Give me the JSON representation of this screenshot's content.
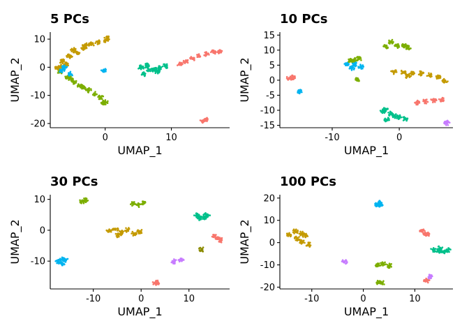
{
  "chart_data": [
    {
      "type": "scatter",
      "title": "5 PCs",
      "xlabel": "UMAP_1",
      "ylabel": "UMAP_2",
      "xlim": [
        -8.3,
        18.8
      ],
      "ylim": [
        -21.5,
        12.5
      ],
      "xticks": [
        0,
        10
      ],
      "yticks": [
        -20,
        -10,
        0,
        10
      ],
      "grid": false,
      "legend": "none",
      "clusters": [
        {
          "color": "#C49A00",
          "points": [
            [
              -7.3,
              -0.1
            ],
            [
              -6.5,
              2.1
            ],
            [
              -5.4,
              4.0
            ],
            [
              -4.3,
              5.3
            ],
            [
              -3.2,
              6.9
            ],
            [
              -2.1,
              8.1
            ],
            [
              -1.1,
              9.0
            ],
            [
              0.1,
              9.7
            ],
            [
              0.3,
              10.3
            ],
            [
              -5.9,
              1.0
            ],
            [
              -6.7,
              0.3
            ],
            [
              -4.8,
              6.1
            ],
            [
              -3.0,
              8.0
            ]
          ]
        },
        {
          "color": "#7CAE00",
          "points": [
            [
              -6.8,
              -1.6
            ],
            [
              -5.7,
              -3.4
            ],
            [
              -4.8,
              -5.1
            ],
            [
              -3.8,
              -6.7
            ],
            [
              -2.5,
              -8.2
            ],
            [
              -1.6,
              -9.5
            ],
            [
              -0.7,
              -10.7
            ],
            [
              0.0,
              -12.4
            ],
            [
              -3.2,
              -7.1
            ],
            [
              -5.2,
              -4.0
            ],
            [
              -0.3,
              -13.0
            ]
          ]
        },
        {
          "color": "#00C08B",
          "points": [
            [
              5.4,
              -0.1
            ],
            [
              5.9,
              -2.3
            ],
            [
              6.7,
              -1.0
            ],
            [
              7.4,
              -0.9
            ],
            [
              8.1,
              -0.3
            ],
            [
              9.1,
              0.4
            ],
            [
              6.2,
              0.6
            ],
            [
              7.9,
              -1.5
            ]
          ]
        },
        {
          "color": "#F8766D",
          "points": [
            [
              11.3,
              1.0
            ],
            [
              12.2,
              2.1
            ],
            [
              13.2,
              3.1
            ],
            [
              14.2,
              3.9
            ],
            [
              15.3,
              4.6
            ],
            [
              16.4,
              5.3
            ],
            [
              17.2,
              5.7
            ],
            [
              14.7,
              -19.1
            ],
            [
              15.1,
              -18.6
            ]
          ]
        },
        {
          "color": "#00B4F0",
          "points": [
            [
              -6.2,
              0.0
            ],
            [
              -6.6,
              -1.1
            ],
            [
              -5.3,
              -2.4
            ],
            [
              -0.2,
              -1.1
            ]
          ]
        }
      ]
    },
    {
      "type": "scatter",
      "title": "10 PCs",
      "xlabel": "UMAP_1",
      "ylabel": "UMAP_2",
      "xlim": [
        -17.8,
        8.0
      ],
      "ylim": [
        -15.8,
        16.0
      ],
      "xticks": [
        -10,
        0
      ],
      "yticks": [
        -15,
        -10,
        -5,
        0,
        5,
        10,
        15
      ],
      "grid": false,
      "legend": "none",
      "clusters": [
        {
          "color": "#7CAE00",
          "points": [
            [
              -2.0,
              11.2
            ],
            [
              -1.2,
              12.8
            ],
            [
              -0.3,
              11.4
            ],
            [
              0.8,
              11.6
            ],
            [
              1.3,
              10.8
            ],
            [
              -6.7,
              6.8
            ],
            [
              -6.0,
              7.2
            ],
            [
              -7.3,
              6.4
            ],
            [
              -6.3,
              0.1
            ]
          ]
        },
        {
          "color": "#00B4F0",
          "points": [
            [
              -7.8,
              5.4
            ],
            [
              -6.6,
              5.3
            ],
            [
              -5.7,
              4.5
            ],
            [
              -7.1,
              4.0
            ],
            [
              -14.8,
              -3.8
            ]
          ]
        },
        {
          "color": "#C49A00",
          "points": [
            [
              -0.8,
              2.8
            ],
            [
              0.6,
              2.6
            ],
            [
              1.9,
              2.1
            ],
            [
              3.2,
              2.3
            ],
            [
              4.5,
              1.6
            ],
            [
              5.8,
              0.9
            ],
            [
              6.8,
              -0.2
            ],
            [
              1.2,
              1.4
            ]
          ]
        },
        {
          "color": "#00C08B",
          "points": [
            [
              -2.4,
              -10.4
            ],
            [
              -1.3,
              -11.1
            ],
            [
              -0.1,
              -12.2
            ],
            [
              0.9,
              -12.8
            ],
            [
              -1.8,
              -13.2
            ],
            [
              -0.7,
              -11.8
            ],
            [
              -2.1,
              -9.8
            ]
          ]
        },
        {
          "color": "#F8766D",
          "points": [
            [
              2.7,
              -7.4
            ],
            [
              3.9,
              -7.0
            ],
            [
              5.1,
              -6.7
            ],
            [
              6.3,
              -6.5
            ],
            [
              -16.4,
              0.6
            ],
            [
              -15.9,
              0.9
            ]
          ]
        },
        {
          "color": "#C77CFF",
          "points": [
            [
              7.1,
              -14.2
            ]
          ]
        }
      ]
    },
    {
      "type": "scatter",
      "title": "30 PCs",
      "xlabel": "UMAP_1",
      "ylabel": "UMAP_2",
      "xlim": [
        -19.0,
        18.5
      ],
      "ylim": [
        -19.0,
        11.5
      ],
      "xticks": [
        -10,
        0,
        10
      ],
      "yticks": [
        -10,
        0,
        10
      ],
      "grid": false,
      "legend": "none",
      "clusters": [
        {
          "color": "#7CAE00",
          "points": [
            [
              -12.3,
              9.4
            ],
            [
              -11.6,
              9.7
            ],
            [
              -1.6,
              8.6
            ],
            [
              -0.6,
              8.2
            ],
            [
              0.5,
              8.9
            ]
          ]
        },
        {
          "color": "#C49A00",
          "points": [
            [
              -6.7,
              -0.2
            ],
            [
              -5.4,
              0.3
            ],
            [
              -4.1,
              -0.8
            ],
            [
              -2.8,
              0.1
            ],
            [
              -1.5,
              -1.1
            ],
            [
              -0.3,
              -0.4
            ],
            [
              -4.8,
              -1.6
            ]
          ]
        },
        {
          "color": "#00C08B",
          "points": [
            [
              11.7,
              4.9
            ],
            [
              12.4,
              3.8
            ],
            [
              13.2,
              4.3
            ],
            [
              13.8,
              5.0
            ]
          ]
        },
        {
          "color": "#00B4F0",
          "points": [
            [
              -17.3,
              -10.1
            ],
            [
              -16.6,
              -10.8
            ],
            [
              -15.8,
              -9.7
            ],
            [
              -16.4,
              -9.4
            ]
          ]
        },
        {
          "color": "#F8766D",
          "points": [
            [
              15.4,
              -1.8
            ],
            [
              16.1,
              -2.6
            ],
            [
              16.7,
              -3.2
            ],
            [
              2.9,
              -17.1
            ],
            [
              3.4,
              -16.9
            ]
          ]
        },
        {
          "color": "#C77CFF",
          "points": [
            [
              8.3,
              -9.6
            ],
            [
              6.9,
              -10.1
            ]
          ]
        },
        {
          "color": "#8B8B00",
          "points": [
            [
              12.7,
              -6.2
            ]
          ]
        }
      ]
    },
    {
      "type": "scatter",
      "title": "100 PCs",
      "xlabel": "UMAP_1",
      "ylabel": "UMAP_2",
      "xlim": [
        -16.2,
        17.4
      ],
      "ylim": [
        -20.8,
        21.5
      ],
      "xticks": [
        -10,
        0,
        10
      ],
      "yticks": [
        -20,
        -10,
        0,
        10,
        20
      ],
      "grid": false,
      "legend": "none",
      "clusters": [
        {
          "color": "#C49A00",
          "points": [
            [
              -14.4,
              3.6
            ],
            [
              -13.2,
              5.1
            ],
            [
              -12.0,
              4.0
            ],
            [
              -11.2,
              3.0
            ],
            [
              -12.8,
              1.9
            ],
            [
              -11.8,
              0.2
            ],
            [
              -10.6,
              -0.9
            ]
          ]
        },
        {
          "color": "#00B4F0",
          "points": [
            [
              2.6,
              16.8
            ],
            [
              3.0,
              17.9
            ],
            [
              3.3,
              16.7
            ]
          ]
        },
        {
          "color": "#F8766D",
          "points": [
            [
              11.4,
              5.1
            ],
            [
              12.0,
              4.2
            ],
            [
              12.6,
              3.6
            ],
            [
              12.3,
              -17.1
            ]
          ]
        },
        {
          "color": "#00C08B",
          "points": [
            [
              13.6,
              -3.2
            ],
            [
              14.5,
              -3.7
            ],
            [
              15.5,
              -4.1
            ],
            [
              16.4,
              -3.4
            ],
            [
              14.9,
              -2.6
            ]
          ]
        },
        {
          "color": "#7CAE00",
          "points": [
            [
              2.9,
              -10.1
            ],
            [
              3.9,
              -9.6
            ],
            [
              5.1,
              -10.4
            ],
            [
              3.0,
              -17.9
            ],
            [
              3.6,
              -18.1
            ]
          ]
        },
        {
          "color": "#C77CFF",
          "points": [
            [
              12.9,
              -15.2
            ],
            [
              -3.7,
              -8.7
            ]
          ]
        }
      ]
    }
  ]
}
